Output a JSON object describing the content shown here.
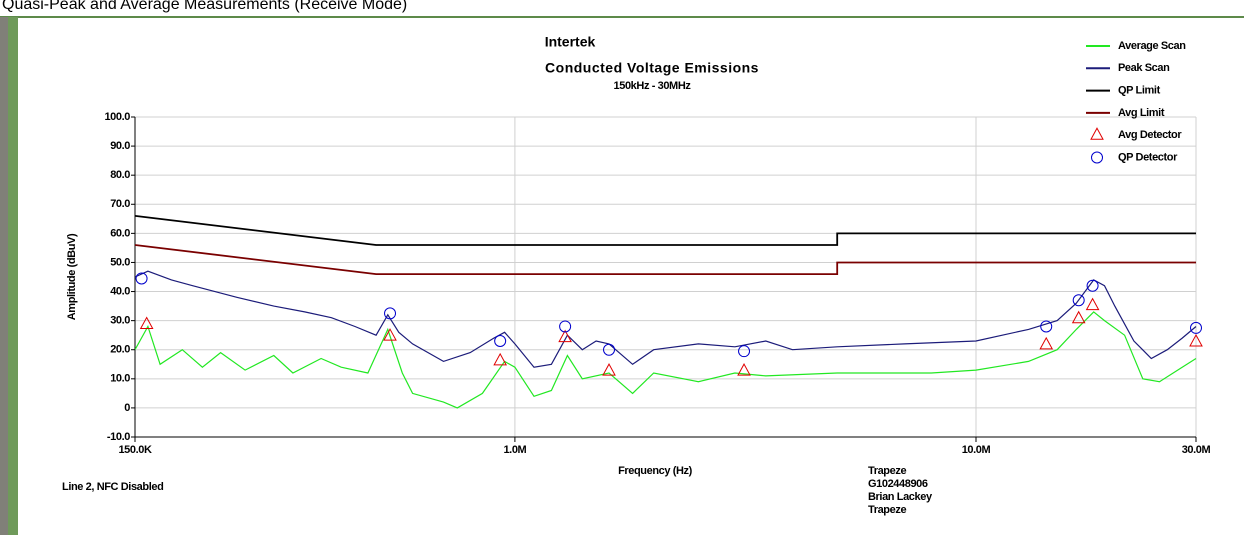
{
  "header": "Quasi-Peak and Average Measurements (Receive Mode)",
  "chart_data": {
    "type": "line",
    "title": "Intertek",
    "subtitle": "Conducted Voltage Emissions",
    "range_note": "150kHz - 30MHz",
    "xlabel": "Frequency (Hz)",
    "ylabel": "Amplitude (dBuV)",
    "xscale": "log",
    "xlim": [
      150000,
      30000000
    ],
    "ylim": [
      -10,
      100
    ],
    "xticks": [
      {
        "value": 150000,
        "label": "150.0K"
      },
      {
        "value": 1000000,
        "label": "1.0M"
      },
      {
        "value": 10000000,
        "label": "10.0M"
      },
      {
        "value": 30000000,
        "label": "30.0M"
      }
    ],
    "yticks": [
      {
        "value": 100,
        "label": "100.0"
      },
      {
        "value": 90,
        "label": "90.0"
      },
      {
        "value": 80,
        "label": "80.0"
      },
      {
        "value": 70,
        "label": "70.0"
      },
      {
        "value": 60,
        "label": "60.0"
      },
      {
        "value": 50,
        "label": "50.0"
      },
      {
        "value": 40,
        "label": "40.0"
      },
      {
        "value": 30,
        "label": "30.0"
      },
      {
        "value": 20,
        "label": "20.0"
      },
      {
        "value": 10,
        "label": "10.0"
      },
      0,
      {
        "value": -10,
        "label": "-10.0"
      }
    ],
    "grid": true,
    "legend": "upper right",
    "annotations": [
      "Line 2, NFC Disabled",
      "Trapeze",
      "G102448906",
      "Brian Lackey",
      "Trapeze"
    ],
    "series": [
      {
        "name": "Average Scan",
        "color": "#22e822",
        "marker": "none",
        "x": [
          150000,
          160000,
          170000,
          190000,
          210000,
          230000,
          260000,
          300000,
          330000,
          380000,
          420000,
          480000,
          530000,
          570000,
          600000,
          700000,
          750000,
          850000,
          950000,
          1000000,
          1100000,
          1200000,
          1300000,
          1400000,
          1600000,
          1800000,
          2000000,
          2500000,
          3000000,
          3500000,
          5000000,
          8000000,
          10000000,
          13000000,
          15000000,
          16500000,
          18000000,
          19000000,
          21000000,
          23000000,
          25000000,
          28000000,
          30000000
        ],
        "values": [
          20,
          28,
          15,
          20,
          14,
          19,
          13,
          18,
          12,
          17,
          14,
          12,
          27,
          12,
          5,
          2,
          0,
          5,
          16,
          14,
          4,
          6,
          18,
          10,
          12,
          5,
          12,
          9,
          12,
          11,
          12,
          12,
          13,
          16,
          20,
          27,
          33,
          30,
          25,
          10,
          9,
          14,
          17
        ]
      },
      {
        "name": "Peak Scan",
        "color": "#1c1c7a",
        "marker": "none",
        "x": [
          150000,
          160000,
          180000,
          200000,
          250000,
          300000,
          350000,
          400000,
          450000,
          500000,
          530000,
          560000,
          600000,
          700000,
          800000,
          900000,
          950000,
          1000000,
          1100000,
          1200000,
          1300000,
          1400000,
          1500000,
          1600000,
          1800000,
          2000000,
          2500000,
          3000000,
          3500000,
          4000000,
          5000000,
          7000000,
          10000000,
          13000000,
          15000000,
          16500000,
          18000000,
          19000000,
          20000000,
          22000000,
          24000000,
          26000000,
          28000000,
          30000000
        ],
        "values": [
          45,
          47,
          44,
          42,
          38,
          35,
          33,
          31,
          28,
          25,
          32,
          26,
          22,
          16,
          19,
          24,
          26,
          22,
          14,
          15,
          25,
          20,
          23,
          22,
          15,
          20,
          22,
          21,
          23,
          20,
          21,
          22,
          23,
          27,
          30,
          36,
          44,
          42,
          35,
          23,
          17,
          20,
          24,
          28
        ]
      },
      {
        "name": "QP Limit",
        "color": "#000000",
        "marker": "none",
        "x": [
          150000,
          500000,
          5000000,
          5000000,
          30000000
        ],
        "values": [
          66,
          56,
          56,
          60,
          60
        ]
      },
      {
        "name": "Avg Limit",
        "color": "#7a0000",
        "marker": "none",
        "x": [
          150000,
          500000,
          5000000,
          5000000,
          30000000
        ],
        "values": [
          56,
          46,
          46,
          50,
          50
        ]
      },
      {
        "name": "Avg Detector",
        "color": "#e00000",
        "marker": "triangle",
        "x": [
          159000,
          536000,
          929000,
          1285000,
          1600000,
          3140000,
          14200000,
          16700000,
          17900000,
          30000000
        ],
        "values": [
          29,
          25,
          16.5,
          24.5,
          13,
          13,
          22,
          31,
          35.5,
          23
        ]
      },
      {
        "name": "QP Detector",
        "color": "#0000cc",
        "marker": "circle",
        "x": [
          155000,
          536000,
          929000,
          1285000,
          1600000,
          3140000,
          14200000,
          16700000,
          17900000,
          30000000
        ],
        "values": [
          44.5,
          32.5,
          23,
          28,
          20,
          19.5,
          28,
          37,
          42,
          27.5
        ]
      }
    ]
  }
}
